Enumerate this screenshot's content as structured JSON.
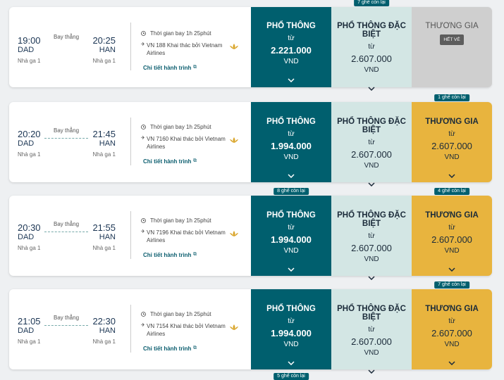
{
  "flights": [
    {
      "departure": {
        "time": "19:00",
        "airport": "DAD",
        "terminal": "Nhà ga 1"
      },
      "stops": "Bay thẳng",
      "arrival": {
        "time": "20:25",
        "airport": "HAN",
        "terminal": "Nhà ga 1"
      },
      "duration": "Thời gian bay 1h 25phút",
      "flight_info": "VN 188 Khai thác bởi Vietnam Airlines",
      "details_link": "Chi tiết hành trình",
      "fares": [
        {
          "class": "PHỔ THÔNG",
          "from": "từ",
          "price": "2.221.000",
          "currency": "VND"
        },
        {
          "class": "PHỔ THÔNG ĐẶC BIỆT",
          "from": "từ",
          "price": "2.607.000",
          "currency": "VND",
          "badge": "7 ghế còn lại"
        },
        {
          "class": "THƯƠNG GIA",
          "sold_out": "HẾT VÉ"
        }
      ]
    },
    {
      "departure": {
        "time": "20:20",
        "airport": "DAD",
        "terminal": "Nhà ga 1"
      },
      "stops": "Bay thẳng",
      "arrival": {
        "time": "21:45",
        "airport": "HAN",
        "terminal": "Nhà ga 1"
      },
      "duration": "Thời gian bay 1h 25phút",
      "flight_info": "VN 7160 Khai thác bởi Vietnam Airlines",
      "details_link": "Chi tiết hành trình",
      "fares": [
        {
          "class": "PHỔ THÔNG",
          "from": "từ",
          "price": "1.994.000",
          "currency": "VND"
        },
        {
          "class": "PHỔ THÔNG ĐẶC BIỆT",
          "from": "từ",
          "price": "2.607.000",
          "currency": "VND"
        },
        {
          "class": "THƯƠNG GIA",
          "from": "từ",
          "price": "2.607.000",
          "currency": "VND",
          "badge": "1 ghế còn lại"
        }
      ]
    },
    {
      "departure": {
        "time": "20:30",
        "airport": "DAD",
        "terminal": "Nhà ga 1"
      },
      "stops": "Bay thẳng",
      "arrival": {
        "time": "21:55",
        "airport": "HAN",
        "terminal": "Nhà ga 1"
      },
      "duration": "Thời gian bay 1h 25phút",
      "flight_info": "VN 7196 Khai thác bởi Vietnam Airlines",
      "details_link": "Chi tiết hành trình",
      "fares": [
        {
          "class": "PHỔ THÔNG",
          "from": "từ",
          "price": "1.994.000",
          "currency": "VND",
          "badge": "8 ghế còn lại"
        },
        {
          "class": "PHỔ THÔNG ĐẶC BIỆT",
          "from": "từ",
          "price": "2.607.000",
          "currency": "VND"
        },
        {
          "class": "THƯƠNG GIA",
          "from": "từ",
          "price": "2.607.000",
          "currency": "VND",
          "badge": "4 ghế còn lại"
        }
      ]
    },
    {
      "departure": {
        "time": "21:05",
        "airport": "DAD",
        "terminal": "Nhà ga 1"
      },
      "stops": "Bay thẳng",
      "arrival": {
        "time": "22:30",
        "airport": "HAN",
        "terminal": "Nhà ga 1"
      },
      "duration": "Thời gian bay 1h 25phút",
      "flight_info": "VN 7154 Khai thác bởi Vietnam Airlines",
      "details_link": "Chi tiết hành trình",
      "fares": [
        {
          "class": "PHỔ THÔNG",
          "from": "từ",
          "price": "1.994.000",
          "currency": "VND"
        },
        {
          "class": "PHỔ THÔNG ĐẶC BIỆT",
          "from": "từ",
          "price": "2.607.000",
          "currency": "VND"
        },
        {
          "class": "THƯƠNG GIA",
          "from": "từ",
          "price": "2.607.000",
          "currency": "VND",
          "badge": "7 ghế còn lại"
        }
      ]
    }
  ],
  "next_badge": "5 ghế còn lại"
}
